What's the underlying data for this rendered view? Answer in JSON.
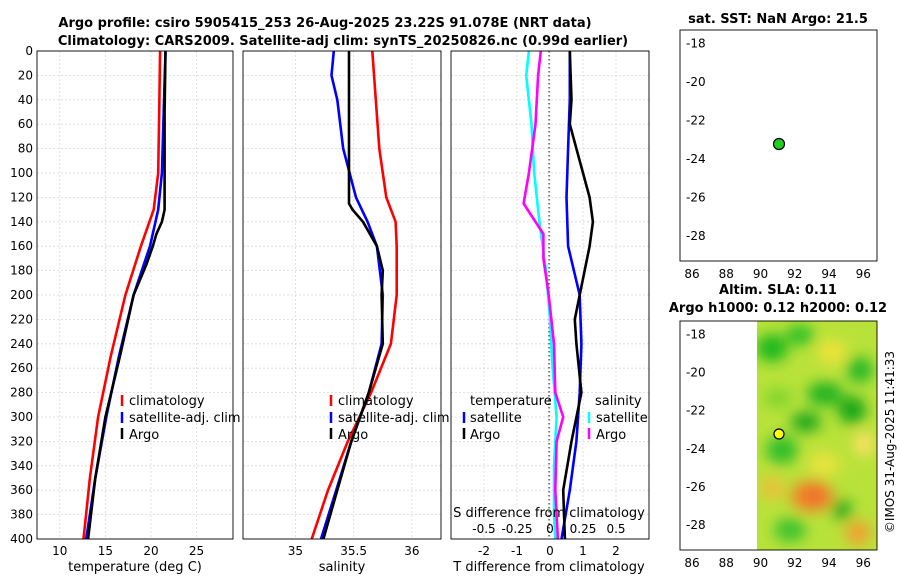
{
  "chart_data": [
    {
      "type": "line",
      "title": "Argo profile: csiro 5905415_253 26-Aug-2025 23.22S 91.078E (NRT data)",
      "xlabel": "temperature (deg C)",
      "ylabel": "",
      "xlim": [
        7.5,
        29
      ],
      "ylim": [
        0,
        400
      ],
      "y_reversed": true,
      "xticks": [
        10,
        15,
        20,
        25
      ],
      "xtick_labels": [
        "10",
        "15",
        "20",
        "25"
      ],
      "yticks": [
        0,
        20,
        40,
        60,
        80,
        100,
        120,
        140,
        160,
        180,
        200,
        220,
        240,
        260,
        280,
        300,
        320,
        340,
        360,
        380,
        400
      ],
      "ytick_labels": [
        "0",
        "20",
        "40",
        "60",
        "80",
        "100",
        "120",
        "140",
        "160",
        "180",
        "200",
        "220",
        "240",
        "260",
        "280",
        "300",
        "320",
        "340",
        "360",
        "380",
        "400"
      ],
      "legend_position": "bottom-right",
      "legend": [
        "climatology",
        "satellite-adj. clim",
        "Argo"
      ],
      "series": [
        {
          "name": "climatology",
          "color": "#ff0000",
          "depth": [
            0,
            50,
            100,
            130,
            160,
            200,
            250,
            300,
            350,
            400
          ],
          "values": [
            21.0,
            20.9,
            20.8,
            20.3,
            18.9,
            17.2,
            15.6,
            14.2,
            13.3,
            12.6
          ]
        },
        {
          "name": "satellite-adj. clim",
          "color": "#0000ff",
          "depth": [
            0,
            50,
            100,
            130,
            160,
            200,
            250,
            300,
            350,
            400
          ],
          "values": [
            21.6,
            21.4,
            21.2,
            20.8,
            19.9,
            18.1,
            16.5,
            15.1,
            13.9,
            12.9
          ]
        },
        {
          "name": "Argo",
          "color": "#000000",
          "depth": [
            0,
            50,
            100,
            130,
            140,
            150,
            160,
            175,
            200,
            250,
            300,
            350,
            400
          ],
          "values": [
            21.6,
            21.5,
            21.5,
            21.5,
            21.2,
            20.6,
            20.2,
            19.5,
            18.1,
            16.6,
            15.0,
            13.9,
            13.1
          ]
        }
      ]
    },
    {
      "type": "line",
      "xlabel": "salinity",
      "xlim": [
        34.55,
        36.25
      ],
      "ylim": [
        0,
        400
      ],
      "y_reversed": true,
      "xticks": [
        35,
        35.5,
        36
      ],
      "xtick_labels": [
        "35",
        "35.5",
        "36"
      ],
      "legend_position": "bottom-right",
      "legend": [
        "climatology",
        "satellite-adj. clim",
        "Argo"
      ],
      "series": [
        {
          "name": "climatology",
          "color": "#ff0000",
          "depth": [
            0,
            40,
            80,
            120,
            140,
            160,
            200,
            240,
            280,
            320,
            360,
            400
          ],
          "values": [
            35.66,
            35.69,
            35.72,
            35.78,
            35.86,
            35.87,
            35.87,
            35.82,
            35.65,
            35.45,
            35.28,
            35.14
          ]
        },
        {
          "name": "satellite-adj. clim",
          "color": "#0000ff",
          "depth": [
            0,
            20,
            40,
            80,
            120,
            140,
            160,
            200,
            240,
            280,
            320,
            360,
            400
          ],
          "values": [
            35.33,
            35.31,
            35.36,
            35.41,
            35.52,
            35.62,
            35.7,
            35.75,
            35.74,
            35.63,
            35.48,
            35.35,
            35.22
          ]
        },
        {
          "name": "Argo",
          "color": "#000000",
          "depth": [
            0,
            40,
            80,
            125,
            130,
            140,
            160,
            180,
            200,
            240,
            280,
            320,
            360,
            400
          ],
          "values": [
            35.46,
            35.46,
            35.46,
            35.46,
            35.49,
            35.58,
            35.7,
            35.75,
            35.74,
            35.75,
            35.63,
            35.48,
            35.36,
            35.24
          ]
        }
      ]
    },
    {
      "type": "line",
      "xlabel": "T difference from climatology",
      "x2label": "S difference from climatology",
      "xlim": [
        -3,
        3
      ],
      "x2lim": [
        -0.75,
        0.75
      ],
      "ylim": [
        0,
        400
      ],
      "y_reversed": true,
      "xticks": [
        -2,
        -1,
        0,
        1,
        2
      ],
      "xtick_labels": [
        "-2",
        "-1",
        "0",
        "1",
        "2"
      ],
      "x2ticks": [
        -0.5,
        -0.25,
        0,
        0.25,
        0.5
      ],
      "x2tick_labels": [
        "-0.5",
        "-0.25",
        "0",
        "0.25",
        "0.5"
      ],
      "legend_position": "bottom",
      "legend_temperature_title": "temperature",
      "legend_salinity_title": "salinity",
      "legend_temperature": [
        "satellite",
        "Argo"
      ],
      "legend_salinity": [
        "satellite",
        "Argo"
      ],
      "series": [
        {
          "name": "temperature satellite",
          "color": "#0000ff",
          "depth": [
            0,
            40,
            80,
            120,
            160,
            200,
            240,
            280,
            320,
            360,
            400
          ],
          "values": [
            0.6,
            0.6,
            0.55,
            0.5,
            0.55,
            0.9,
            0.95,
            0.9,
            0.8,
            0.6,
            0.35
          ]
        },
        {
          "name": "temperature Argo",
          "color": "#000000",
          "depth": [
            0,
            40,
            60,
            80,
            120,
            140,
            160,
            200,
            220,
            240,
            280,
            320,
            360,
            400
          ],
          "values": [
            0.6,
            0.65,
            0.6,
            0.8,
            1.2,
            1.3,
            1.2,
            0.9,
            0.75,
            0.8,
            0.95,
            0.65,
            0.4,
            0.45
          ]
        },
        {
          "name": "salinity satellite",
          "color": "#00ffff",
          "depth": [
            0,
            20,
            60,
            100,
            140,
            180,
            220,
            260,
            300,
            340,
            380,
            400
          ],
          "values": [
            -0.16,
            -0.18,
            -0.14,
            -0.12,
            -0.08,
            -0.03,
            0.0,
            0.02,
            0.05,
            0.03,
            0.03,
            0.04
          ]
        },
        {
          "name": "salinity Argo",
          "color": "#ff00ff",
          "depth": [
            0,
            20,
            60,
            100,
            125,
            150,
            170,
            200,
            240,
            280,
            300,
            320,
            360,
            400
          ],
          "values": [
            -0.07,
            -0.09,
            -0.11,
            -0.16,
            -0.2,
            -0.05,
            -0.05,
            -0.01,
            0.03,
            0.04,
            0.1,
            0.05,
            0.04,
            0.06
          ]
        }
      ]
    },
    {
      "type": "scatter",
      "title": "sat. SST: NaN Argo: 21.5",
      "xlim": [
        85.3,
        96.8
      ],
      "ylim": [
        -29.3,
        -17.3
      ],
      "xticks": [
        86,
        88,
        90,
        92,
        94,
        96
      ],
      "xtick_labels": [
        "86",
        "88",
        "90",
        "92",
        "94",
        "96"
      ],
      "yticks": [
        -18,
        -20,
        -22,
        -24,
        -26,
        -28
      ],
      "ytick_labels": [
        "-18",
        "-20",
        "-22",
        "-24",
        "-26",
        "-28"
      ],
      "points": [
        {
          "x": 91.078,
          "y": -23.22,
          "color": "#22cc22"
        }
      ]
    },
    {
      "type": "heatmap",
      "title_line1": "Altim. SLA: 0.11",
      "title_line2": "Argo h1000: 0.12 h2000: 0.12",
      "xlim": [
        85.3,
        96.8
      ],
      "ylim": [
        -29.3,
        -17.3
      ],
      "xticks": [
        86,
        88,
        90,
        92,
        94,
        96
      ],
      "xtick_labels": [
        "86",
        "88",
        "90",
        "92",
        "94",
        "96"
      ],
      "yticks": [
        -18,
        -20,
        -22,
        -24,
        -26,
        -28
      ],
      "ytick_labels": [
        "-18",
        "-20",
        "-22",
        "-24",
        "-26",
        "-28"
      ],
      "data_xlim": [
        90,
        96.8
      ],
      "points": [
        {
          "x": 91.078,
          "y": -23.22,
          "color": "#ffff00"
        }
      ]
    }
  ],
  "header": {
    "title_line1": "Argo profile: csiro 5905415_253 26-Aug-2025 23.22S 91.078E (NRT data)",
    "title_line2": "Climatology: CARS2009. Satellite-adj clim: synTS_20250826.nc (0.99d earlier)"
  },
  "legend_profiles": {
    "climatology": "climatology",
    "satellite": "satellite-adj. clim",
    "argo": "Argo"
  },
  "diff_legend": {
    "temperature": "temperature",
    "salinity": "salinity",
    "satellite": "satellite",
    "argo": "Argo"
  },
  "sst_title": "sat. SST: NaN Argo: 21.5",
  "sla_title_line1": "Altim. SLA: 0.11",
  "sla_title_line2": "Argo h1000: 0.12 h2000: 0.12",
  "stamp": "©IMOS 31-Aug-2025 11:41:33"
}
